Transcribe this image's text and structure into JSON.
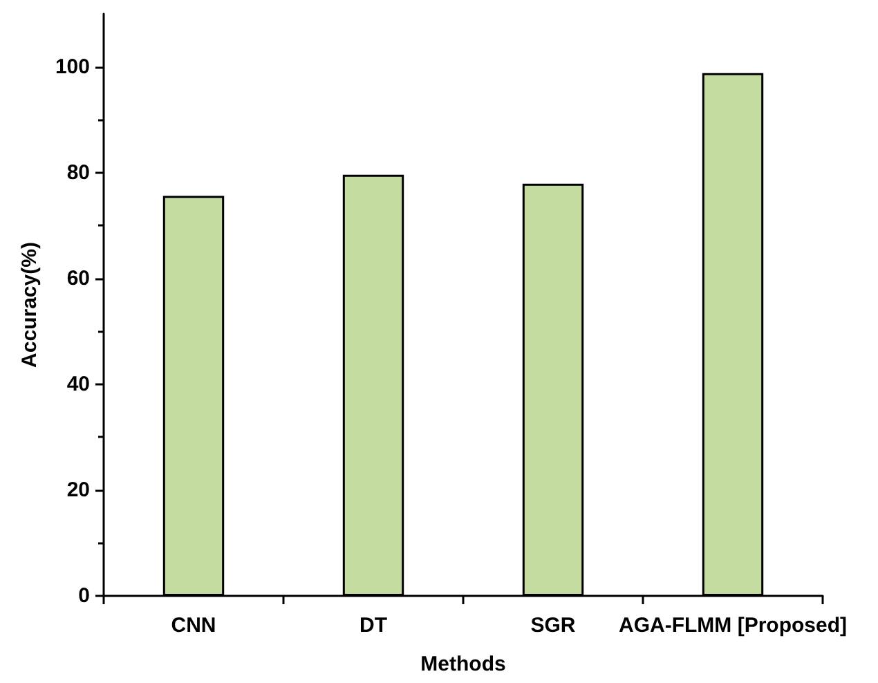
{
  "chart_data": {
    "type": "bar",
    "xlabel": "Methods",
    "ylabel": "Accuracy(%)",
    "categories": [
      "CNN",
      "DT",
      "SGR",
      "AGA-FLMM [Proposed]"
    ],
    "values": [
      75.6,
      79.6,
      77.9,
      98.8
    ],
    "color": "#c4dca0",
    "ylim": [
      0,
      110
    ],
    "yticks": [
      0,
      20,
      40,
      60,
      80,
      100
    ],
    "grid": false
  }
}
